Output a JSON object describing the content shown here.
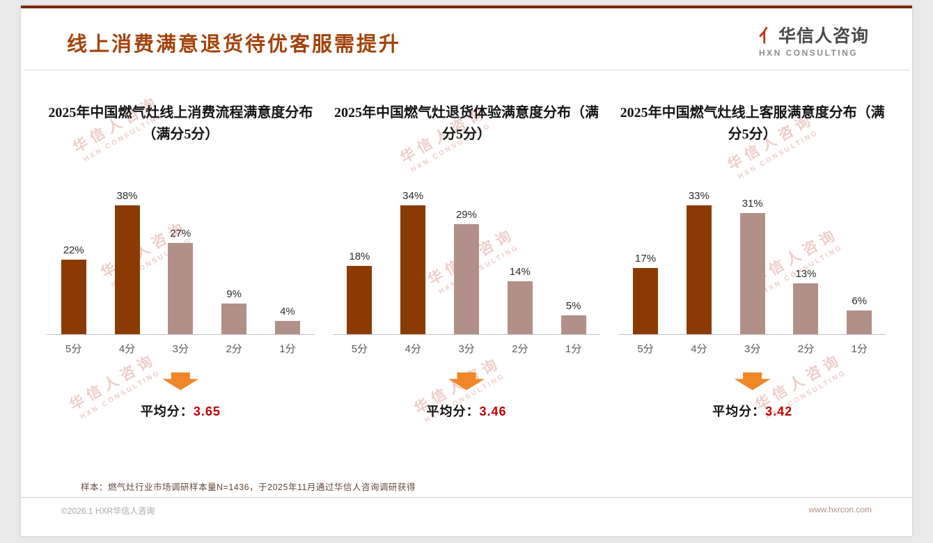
{
  "slide": {
    "title": "线上消费满意退货待优客服需提升",
    "logo": {
      "mark": "亻",
      "name_cn": "华信人咨询",
      "name_en": "HXN CONSULTING"
    },
    "watermark": {
      "cn": "华信人咨询",
      "en": "HXN CONSULTING"
    },
    "footnote": "样本：燃气灶行业市场调研样本量N=1436，于2025年11月通过华信人咨询调研获得",
    "footer": {
      "left": "©2026.1 HXR华信人咨询",
      "right": "www.hxrcon.com"
    }
  },
  "colors": {
    "title": "#a3430b",
    "bar_dark": "#8c3a04",
    "bar_light": "#b29088",
    "arrow": "#f08628",
    "avg_value": "#c00000"
  },
  "chart_data": [
    {
      "type": "bar",
      "title": "2025年中国燃气灶线上消费流程满意度分布（满分5分）",
      "categories": [
        "5分",
        "4分",
        "3分",
        "2分",
        "1分"
      ],
      "values": [
        22,
        38,
        27,
        9,
        4
      ],
      "unit": "%",
      "bar_styles": [
        "dark",
        "dark",
        "light",
        "light",
        "light"
      ],
      "average_label": "平均分：",
      "average_value": "3.65",
      "ylim": [
        0,
        40
      ],
      "grid": false,
      "legend": false
    },
    {
      "type": "bar",
      "title": "2025年中国燃气灶退货体验满意度分布（满分5分）",
      "categories": [
        "5分",
        "4分",
        "3分",
        "2分",
        "1分"
      ],
      "values": [
        18,
        34,
        29,
        14,
        5
      ],
      "unit": "%",
      "bar_styles": [
        "dark",
        "dark",
        "light",
        "light",
        "light"
      ],
      "average_label": "平均分：",
      "average_value": "3.46",
      "ylim": [
        0,
        40
      ],
      "grid": false,
      "legend": false
    },
    {
      "type": "bar",
      "title": "2025年中国燃气灶线上客服满意度分布（满分5分）",
      "categories": [
        "5分",
        "4分",
        "3分",
        "2分",
        "1分"
      ],
      "values": [
        17,
        33,
        31,
        13,
        6
      ],
      "unit": "%",
      "bar_styles": [
        "dark",
        "dark",
        "light",
        "light",
        "light"
      ],
      "average_label": "平均分：",
      "average_value": "3.42",
      "ylim": [
        0,
        35
      ],
      "grid": false,
      "legend": false
    }
  ]
}
